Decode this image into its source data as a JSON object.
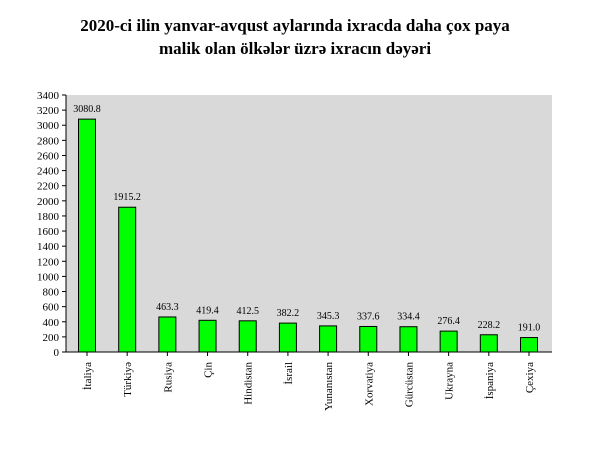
{
  "chart_data": {
    "type": "bar",
    "title_lines": [
      "2020-ci ilin yanvar-avqust aylarında ixracda daha çox paya",
      "malik olan ölkələr üzrə ixracın dəyəri"
    ],
    "categories": [
      "İtaliya",
      "Türkiyə",
      "Rusiya",
      "Çin",
      "Hindistan",
      "İsrail",
      "Yunanıstan",
      "Xorvatiya",
      "Gürcüstan",
      "Ukrayna",
      "İspaniya",
      "Çexiya"
    ],
    "values": [
      3080.8,
      1915.2,
      463.3,
      419.4,
      412.5,
      382.2,
      345.3,
      337.6,
      334.4,
      276.4,
      228.2,
      191.0
    ],
    "value_labels": [
      "3080.8",
      "1915.2",
      "463.3",
      "419.4",
      "412.5",
      "382.2",
      "345.3",
      "337.6",
      "334.4",
      "276.4",
      "228.2",
      "191.0"
    ],
    "yticks": [
      "0",
      "200",
      "400",
      "600",
      "800",
      "1000",
      "1200",
      "1400",
      "1600",
      "1800",
      "2000",
      "2200",
      "2400",
      "2600",
      "2800",
      "3000",
      "3200",
      "3400"
    ],
    "ylim": [
      0,
      3400
    ],
    "xlabel": "",
    "ylabel": "",
    "grid": false,
    "legend": false,
    "colors": {
      "bar_fill": "#00ff00",
      "bar_stroke": "#000000",
      "plot_background": "#d9d9d9",
      "axis": "#000000"
    }
  }
}
